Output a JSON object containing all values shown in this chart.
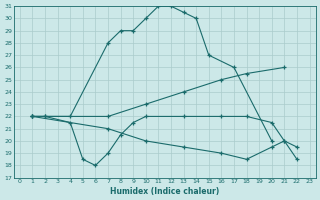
{
  "xlabel": "Humidex (Indice chaleur)",
  "bg_color": "#cce8e8",
  "grid_color": "#aacccc",
  "line_color": "#1a6b6b",
  "xlim": [
    -0.5,
    23.5
  ],
  "ylim": [
    17,
    31
  ],
  "xticks": [
    0,
    1,
    2,
    3,
    4,
    5,
    6,
    7,
    8,
    9,
    10,
    11,
    12,
    13,
    14,
    15,
    16,
    17,
    18,
    19,
    20,
    21,
    22,
    23
  ],
  "yticks": [
    17,
    18,
    19,
    20,
    21,
    22,
    23,
    24,
    25,
    26,
    27,
    28,
    29,
    30,
    31
  ],
  "line1_x": [
    1,
    2,
    4,
    7,
    8,
    9,
    10,
    11,
    12,
    13,
    14,
    15,
    17,
    20
  ],
  "line1_y": [
    22,
    22,
    22,
    28,
    29,
    29,
    30,
    31,
    31,
    30.5,
    30,
    27,
    26,
    20
  ],
  "line2_x": [
    1,
    7,
    10,
    13,
    16,
    18,
    21
  ],
  "line2_y": [
    22,
    22,
    23,
    24,
    25,
    25.5,
    26
  ],
  "line3_x": [
    1,
    2,
    4,
    5,
    6,
    7,
    8,
    9,
    10,
    13,
    16,
    18,
    20,
    21,
    22
  ],
  "line3_y": [
    22,
    22,
    21.5,
    18.5,
    18,
    19,
    20.5,
    21.5,
    22,
    22,
    22,
    22,
    21.5,
    20,
    19.5
  ],
  "line4_x": [
    1,
    7,
    10,
    13,
    16,
    18,
    20,
    21,
    22
  ],
  "line4_y": [
    22,
    21,
    20,
    19.5,
    19,
    18.5,
    19.5,
    20,
    18.5
  ]
}
